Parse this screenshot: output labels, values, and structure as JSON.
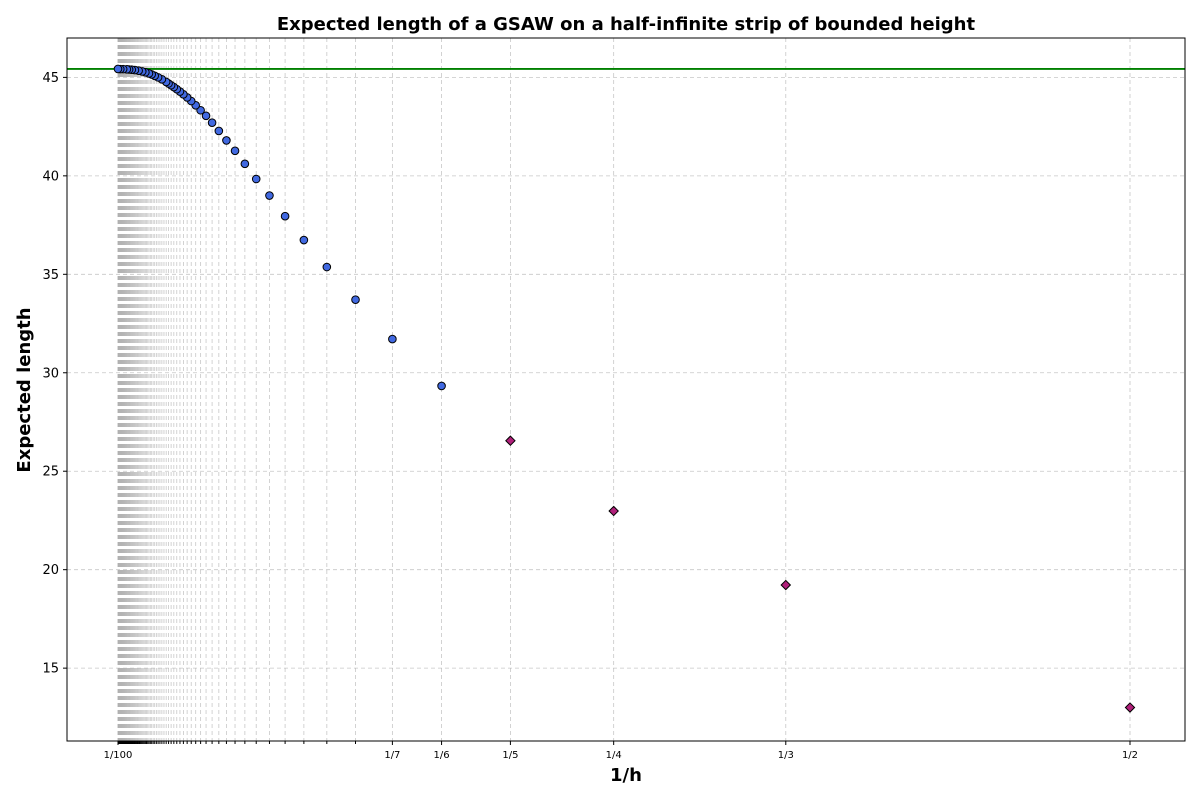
{
  "chart_data": {
    "type": "scatter",
    "title": "Expected length of a GSAW on a half-infinite strip of bounded height",
    "xlabel": "1/h",
    "ylabel": "Expected length",
    "x_scale": "reciprocal",
    "x_tick_labels": [
      {
        "label": "1/100",
        "h": 100
      },
      {
        "label": "1/7",
        "h": 7
      },
      {
        "label": "1/6",
        "h": 6
      },
      {
        "label": "1/5",
        "h": 5
      },
      {
        "label": "1/4",
        "h": 4
      },
      {
        "label": "1/3",
        "h": 3
      },
      {
        "label": "1/2",
        "h": 2
      }
    ],
    "x_minor_ticks_h_from": 8,
    "x_minor_ticks_h_to": 100,
    "y_ticks": [
      15,
      20,
      25,
      30,
      35,
      40,
      45
    ],
    "ylim": [
      11.3,
      47.0
    ],
    "grid": true,
    "asymptote": {
      "y": 45.43,
      "color": "#008000"
    },
    "series": [
      {
        "marker": "circle",
        "color": "#4169e1",
        "points": [
          {
            "h": 6,
            "y": 29.33
          },
          {
            "h": 7,
            "y": 31.71
          },
          {
            "h": 8,
            "y": 33.71
          },
          {
            "h": 9,
            "y": 35.37
          },
          {
            "h": 10,
            "y": 36.74
          },
          {
            "h": 11,
            "y": 37.95
          },
          {
            "h": 12,
            "y": 39.0
          },
          {
            "h": 13,
            "y": 39.84
          },
          {
            "h": 14,
            "y": 40.61
          },
          {
            "h": 15,
            "y": 41.27
          },
          {
            "h": 16,
            "y": 41.8
          },
          {
            "h": 17,
            "y": 42.28
          },
          {
            "h": 18,
            "y": 42.7
          },
          {
            "h": 19,
            "y": 43.05
          },
          {
            "h": 20,
            "y": 43.33
          },
          {
            "h": 21,
            "y": 43.58
          },
          {
            "h": 22,
            "y": 43.8
          },
          {
            "h": 23,
            "y": 43.98
          },
          {
            "h": 24,
            "y": 44.14
          },
          {
            "h": 25,
            "y": 44.28
          },
          {
            "h": 26,
            "y": 44.4
          },
          {
            "h": 27,
            "y": 44.51
          },
          {
            "h": 28,
            "y": 44.6
          },
          {
            "h": 29,
            "y": 44.69
          },
          {
            "h": 30,
            "y": 44.77
          },
          {
            "h": 32,
            "y": 44.9
          },
          {
            "h": 34,
            "y": 45.0
          },
          {
            "h": 36,
            "y": 45.08
          },
          {
            "h": 38,
            "y": 45.15
          },
          {
            "h": 40,
            "y": 45.2
          },
          {
            "h": 43,
            "y": 45.26
          },
          {
            "h": 46,
            "y": 45.3
          },
          {
            "h": 50,
            "y": 45.34
          },
          {
            "h": 55,
            "y": 45.37
          },
          {
            "h": 60,
            "y": 45.39
          },
          {
            "h": 65,
            "y": 45.4
          },
          {
            "h": 70,
            "y": 45.41
          },
          {
            "h": 80,
            "y": 45.42
          },
          {
            "h": 90,
            "y": 45.42
          },
          {
            "h": 100,
            "y": 45.43
          }
        ]
      },
      {
        "marker": "diamond",
        "color": "#b0207a",
        "points": [
          {
            "h": 5,
            "y": 26.55
          },
          {
            "h": 4,
            "y": 22.98
          },
          {
            "h": 3,
            "y": 19.22
          },
          {
            "h": 2,
            "y": 13.0
          }
        ]
      }
    ]
  }
}
